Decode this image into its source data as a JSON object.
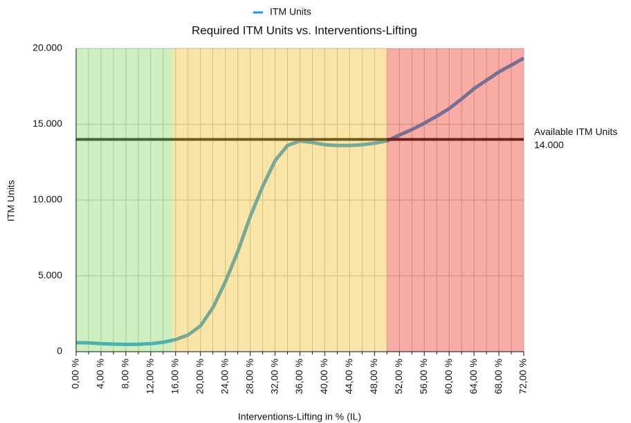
{
  "chart_data": {
    "type": "line",
    "title": "Required ITM Units vs. Interventions-Lifting",
    "x_label": "Interventions-Lifting in % (IL)",
    "y_label": "ITM Units",
    "x": [
      0,
      2,
      4,
      6,
      8,
      10,
      12,
      14,
      16,
      18,
      20,
      22,
      24,
      26,
      28,
      30,
      32,
      34,
      36,
      38,
      40,
      42,
      44,
      46,
      48,
      50,
      52,
      54,
      56,
      58,
      60,
      62,
      64,
      66,
      68,
      70,
      72
    ],
    "series": [
      {
        "name": "ITM Units",
        "color": "#2196e0",
        "values": [
          600,
          580,
          530,
          500,
          480,
          490,
          530,
          620,
          800,
          1100,
          1700,
          2900,
          4600,
          6600,
          8900,
          10900,
          12600,
          13600,
          13900,
          13800,
          13650,
          13600,
          13600,
          13650,
          13750,
          13900,
          14290,
          14650,
          15070,
          15530,
          16030,
          16670,
          17350,
          17900,
          18450,
          18900,
          19360
        ]
      }
    ],
    "xlim": [
      0,
      72
    ],
    "xticks": [
      {
        "value": 0,
        "label": "0,00 %"
      },
      {
        "value": 4,
        "label": "4,00 %"
      },
      {
        "value": 8,
        "label": "8,00 %"
      },
      {
        "value": 12,
        "label": "12,00 %"
      },
      {
        "value": 16,
        "label": "16,00 %"
      },
      {
        "value": 20,
        "label": "20,00 %"
      },
      {
        "value": 24,
        "label": "24,00 %"
      },
      {
        "value": 28,
        "label": "28,00 %"
      },
      {
        "value": 32,
        "label": "32,00 %"
      },
      {
        "value": 36,
        "label": "36,00 %"
      },
      {
        "value": 40,
        "label": "40,00 %"
      },
      {
        "value": 44,
        "label": "44,00 %"
      },
      {
        "value": 48,
        "label": "48,00 %"
      },
      {
        "value": 52,
        "label": "52,00 %"
      },
      {
        "value": 56,
        "label": "56,00 %"
      },
      {
        "value": 60,
        "label": "60,00 %"
      },
      {
        "value": 64,
        "label": "64,00 %"
      },
      {
        "value": 68,
        "label": "68,00 %"
      },
      {
        "value": 72,
        "label": "72,00 %"
      }
    ],
    "xminorticks": [
      2,
      6,
      10,
      14,
      18,
      22,
      26,
      30,
      34,
      38,
      42,
      46,
      50,
      54,
      58,
      62,
      66,
      70
    ],
    "ylim": [
      0,
      20000
    ],
    "yticks": [
      0,
      {
        "value": 5000,
        "label": "5.000"
      },
      {
        "value": 10000,
        "label": "10.000"
      },
      {
        "value": 15000,
        "label": "15.000"
      },
      {
        "value": 20000,
        "label": "20.000"
      }
    ],
    "grid": true,
    "legend": "top",
    "zones": [
      {
        "from": 0,
        "to": 15.5,
        "color": "#8ad86a"
      },
      {
        "from": 15.5,
        "to": 50,
        "color": "#f0c030"
      },
      {
        "from": 50,
        "to": 72,
        "color": "#f03a28"
      }
    ],
    "reference": {
      "value": 14000,
      "label": "Available ITM Units",
      "value_label": "14.000",
      "color": "#111111"
    }
  }
}
